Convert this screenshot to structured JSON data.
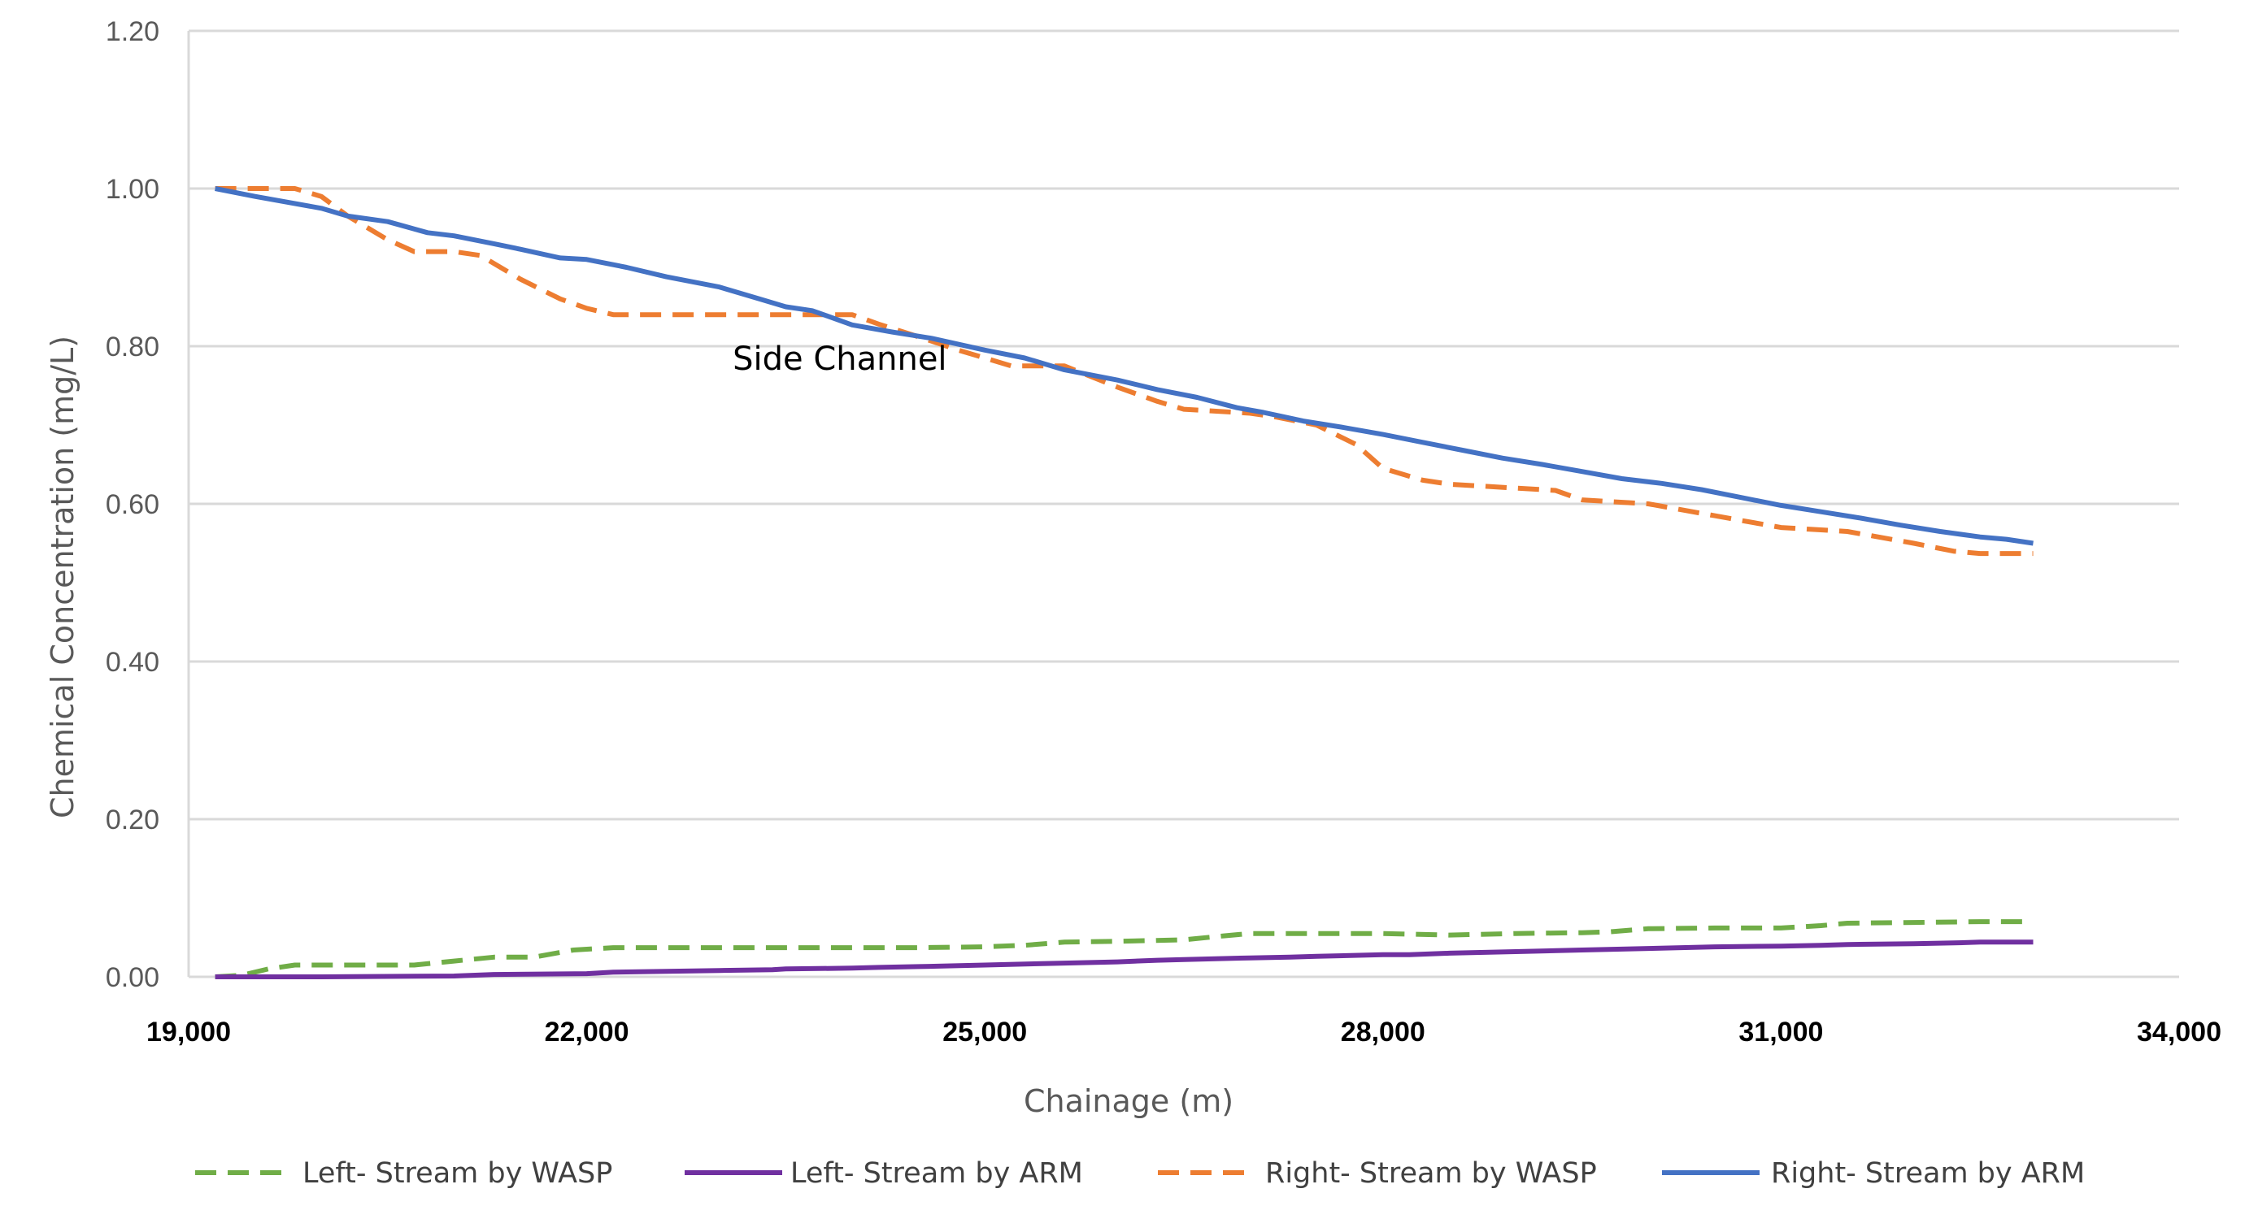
{
  "chart_data": {
    "type": "line",
    "title": "",
    "xlabel": "Chainage (m)",
    "ylabel": "Chemical Concentration (mg/L)",
    "xlim": [
      19000,
      34000
    ],
    "ylim": [
      0,
      1.2
    ],
    "grid": true,
    "legend_position": "bottom",
    "x_ticks": [
      19000,
      22000,
      25000,
      28000,
      31000,
      34000
    ],
    "x_tick_labels": [
      "19,000",
      "22,000",
      "25,000",
      "28,000",
      "31,000",
      "34,000"
    ],
    "y_ticks": [
      0,
      0.2,
      0.4,
      0.6,
      0.8,
      1.0,
      1.2
    ],
    "y_tick_labels": [
      "0.00",
      "0.20",
      "0.40",
      "0.60",
      "0.80",
      "1.00",
      "1.20"
    ],
    "annotations": [
      {
        "text": "Side Channel",
        "x": 23100,
        "y": 0.77
      }
    ],
    "series": [
      {
        "name": "Left- Stream by WASP",
        "color": "#70ad47",
        "dash": "dashed",
        "x": [
          19200,
          19400,
          19600,
          19800,
          20200,
          20700,
          21000,
          21300,
          21600,
          21900,
          22200,
          22600,
          23000,
          23500,
          24000,
          24500,
          25000,
          25300,
          25600,
          26000,
          26500,
          26800,
          27000,
          27500,
          28000,
          28500,
          29000,
          29500,
          29700,
          30000,
          30500,
          31000,
          31300,
          31500,
          32000,
          32500,
          32900
        ],
        "values": [
          0.0,
          0.002,
          0.01,
          0.015,
          0.015,
          0.015,
          0.02,
          0.025,
          0.025,
          0.034,
          0.037,
          0.037,
          0.037,
          0.037,
          0.037,
          0.037,
          0.038,
          0.04,
          0.044,
          0.045,
          0.047,
          0.052,
          0.055,
          0.055,
          0.055,
          0.053,
          0.055,
          0.056,
          0.057,
          0.061,
          0.062,
          0.062,
          0.065,
          0.068,
          0.069,
          0.07,
          0.07
        ]
      },
      {
        "name": "Left- Stream by ARM",
        "color": "#7030a0",
        "dash": "solid",
        "x": [
          19200,
          20000,
          21000,
          21300,
          22000,
          22200,
          22600,
          23000,
          23400,
          23500,
          24000,
          24200,
          24500,
          25000,
          25500,
          26000,
          26300,
          26500,
          27000,
          27300,
          27500,
          28000,
          28200,
          28500,
          29000,
          29500,
          30000,
          30500,
          31000,
          31300,
          31500,
          32000,
          32300,
          32500,
          32900
        ],
        "values": [
          0.0,
          0.0,
          0.001,
          0.003,
          0.004,
          0.006,
          0.007,
          0.008,
          0.009,
          0.01,
          0.011,
          0.012,
          0.013,
          0.015,
          0.017,
          0.019,
          0.021,
          0.022,
          0.024,
          0.025,
          0.026,
          0.028,
          0.028,
          0.03,
          0.032,
          0.034,
          0.036,
          0.038,
          0.039,
          0.04,
          0.041,
          0.042,
          0.043,
          0.044,
          0.044
        ]
      },
      {
        "name": "Right- Stream by WASP",
        "color": "#ed7d31",
        "dash": "dashed",
        "x": [
          19200,
          19500,
          19800,
          20000,
          20200,
          20500,
          20700,
          21000,
          21200,
          21500,
          21800,
          22000,
          22200,
          22500,
          23000,
          23500,
          23700,
          24000,
          24200,
          24500,
          24800,
          25000,
          25200,
          25600,
          26000,
          26300,
          26500,
          27000,
          27200,
          27500,
          27800,
          28000,
          28300,
          28500,
          29000,
          29300,
          29500,
          30000,
          30500,
          31000,
          31500,
          32000,
          32300,
          32500,
          32900
        ],
        "values": [
          1.0,
          1.0,
          1.0,
          0.99,
          0.965,
          0.935,
          0.92,
          0.92,
          0.915,
          0.885,
          0.86,
          0.848,
          0.84,
          0.84,
          0.84,
          0.84,
          0.84,
          0.84,
          0.828,
          0.812,
          0.795,
          0.785,
          0.775,
          0.775,
          0.748,
          0.73,
          0.72,
          0.715,
          0.71,
          0.7,
          0.675,
          0.645,
          0.63,
          0.625,
          0.62,
          0.617,
          0.605,
          0.6,
          0.585,
          0.57,
          0.565,
          0.55,
          0.54,
          0.537,
          0.537
        ]
      },
      {
        "name": "Right- Stream by ARM",
        "color": "#4472c4",
        "dash": "solid",
        "x": [
          19200,
          19500,
          20000,
          20200,
          20500,
          20800,
          21000,
          21300,
          21500,
          21800,
          22000,
          22300,
          22600,
          23000,
          23300,
          23500,
          23700,
          24000,
          24300,
          24600,
          25000,
          25300,
          25600,
          26000,
          26300,
          26600,
          26900,
          27100,
          27400,
          27700,
          28000,
          28300,
          28600,
          28900,
          29200,
          29500,
          29800,
          30100,
          30400,
          30700,
          31000,
          31300,
          31600,
          31900,
          32200,
          32500,
          32700,
          32900
        ],
        "values": [
          1.0,
          0.99,
          0.975,
          0.965,
          0.958,
          0.944,
          0.94,
          0.93,
          0.923,
          0.912,
          0.91,
          0.9,
          0.888,
          0.875,
          0.86,
          0.85,
          0.845,
          0.827,
          0.818,
          0.81,
          0.795,
          0.785,
          0.77,
          0.757,
          0.745,
          0.735,
          0.722,
          0.716,
          0.705,
          0.697,
          0.688,
          0.678,
          0.668,
          0.658,
          0.65,
          0.641,
          0.632,
          0.626,
          0.618,
          0.608,
          0.598,
          0.59,
          0.582,
          0.573,
          0.565,
          0.558,
          0.555,
          0.55
        ]
      }
    ]
  }
}
